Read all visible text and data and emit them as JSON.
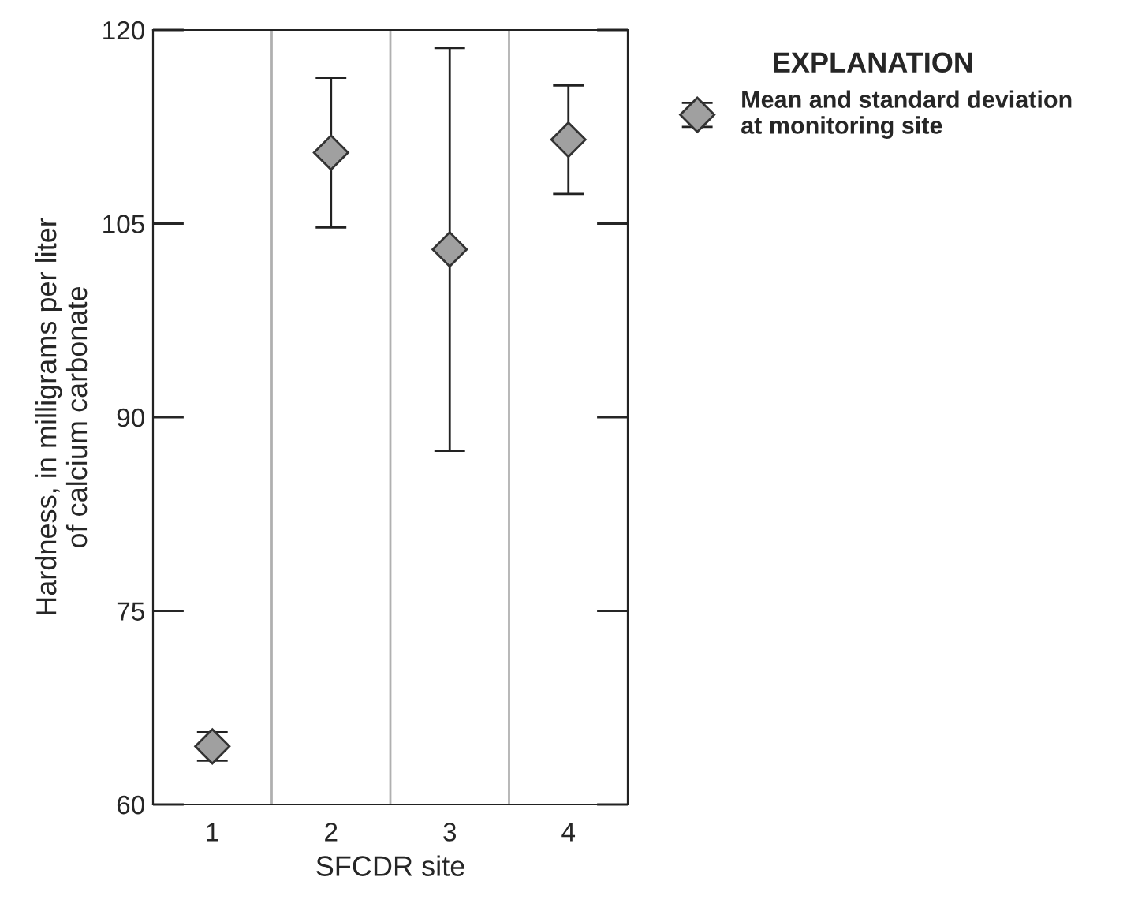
{
  "chart_data": {
    "type": "scatter",
    "xlabel": "SFCDR site",
    "ylabel": "Hardness, in milligrams per liter\nof calcium carbonate",
    "legend_title": "EXPLANATION",
    "x": [
      1,
      2,
      3,
      4
    ],
    "xlim": [
      0.5,
      4.5
    ],
    "xticks": [
      1,
      2,
      3,
      4
    ],
    "ylim": [
      60,
      120
    ],
    "yticks": [
      60,
      75,
      90,
      105,
      120
    ],
    "series": [
      {
        "name": "Mean and standard deviation\nat monitoring site",
        "color": "#a0a0a0",
        "values": [
          64.5,
          110.5,
          103.0,
          111.5
        ],
        "errors": [
          1.1,
          5.8,
          15.6,
          4.2
        ]
      }
    ],
    "ref_lines": [
      {
        "axis": "x",
        "value": 1.5,
        "color": "#b0b0b0"
      },
      {
        "axis": "x",
        "value": 2.5,
        "color": "#b0b0b0"
      },
      {
        "axis": "x",
        "value": 3.5,
        "color": "#b0b0b0"
      }
    ],
    "marker": "diamond",
    "grid": false,
    "legend": "top right"
  }
}
